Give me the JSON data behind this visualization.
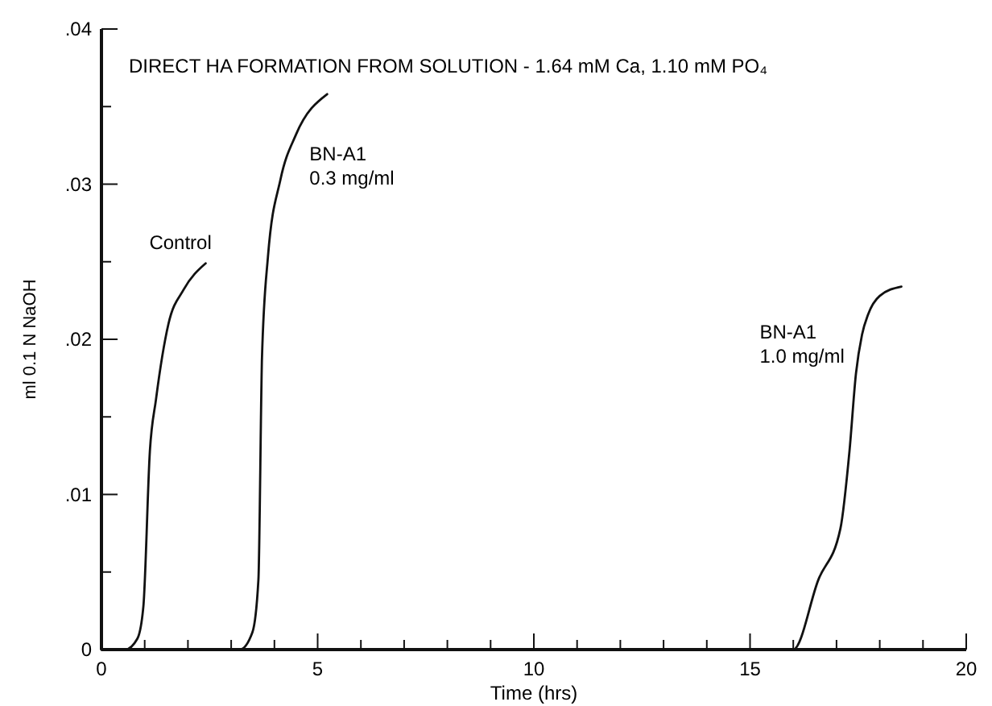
{
  "chart_data": {
    "type": "line",
    "title": "DIRECT HA FORMATION FROM SOLUTION - 1.64 mM Ca, 1.10 mM PO₄",
    "xlabel": "Time (hrs)",
    "ylabel": "ml 0.1 N NaOH",
    "series": [
      {
        "name": "Control",
        "color": "#111111",
        "x": [
          0,
          0.55,
          0.83,
          0.97,
          1.12,
          1.26,
          1.55,
          1.9,
          2.41
        ],
        "values": [
          0,
          0,
          0.0007,
          0.0028,
          0.0128,
          0.0161,
          0.021,
          0.0232,
          0.0249
        ]
      },
      {
        "name": "BN-A1\n0.3 mg/ml",
        "color": "#111111",
        "x": [
          0,
          3.2,
          3.49,
          3.63,
          3.7,
          3.71,
          3.85,
          4.14,
          4.5,
          5.22
        ],
        "values": [
          0,
          0,
          0.0011,
          0.0045,
          0.017,
          0.0186,
          0.0253,
          0.0303,
          0.0332,
          0.0358
        ]
      },
      {
        "name": "BN-A1\n1.0 mg/ml",
        "color": "#111111",
        "x": [
          0,
          16.0,
          16.58,
          17.09,
          17.3,
          17.45,
          17.59,
          17.73,
          18.0,
          18.5
        ],
        "values": [
          0,
          0,
          0.0045,
          0.0078,
          0.0128,
          0.0178,
          0.0203,
          0.0216,
          0.0228,
          0.0234
        ]
      }
    ],
    "xlim": [
      0,
      20
    ],
    "ylim": [
      0,
      0.04
    ],
    "xticks": [
      0,
      {
        "value": 1,
        "label": null
      },
      {
        "value": 2,
        "label": null
      },
      {
        "value": 3,
        "label": null
      },
      {
        "value": 4,
        "label": null
      },
      5,
      {
        "value": 6,
        "label": null
      },
      {
        "value": 7,
        "label": null
      },
      {
        "value": 8,
        "label": null
      },
      {
        "value": 9,
        "label": null
      },
      10,
      {
        "value": 11,
        "label": null
      },
      {
        "value": 12,
        "label": null
      },
      {
        "value": 13,
        "label": null
      },
      {
        "value": 14,
        "label": null
      },
      15,
      {
        "value": 16,
        "label": null
      },
      {
        "value": 17,
        "label": null
      },
      {
        "value": 18,
        "label": null
      },
      {
        "value": 19,
        "label": null
      },
      20
    ],
    "yticks": [
      0,
      {
        "value": 0.005,
        "label": null
      },
      {
        "value": 0.01,
        "label": ".01"
      },
      {
        "value": 0.015,
        "label": null
      },
      {
        "value": 0.02,
        "label": ".02"
      },
      {
        "value": 0.025,
        "label": null
      },
      {
        "value": 0.03,
        "label": ".03"
      },
      {
        "value": 0.035,
        "label": null
      },
      {
        "value": 0.04,
        "label": ".04"
      }
    ],
    "grid": false,
    "marker": "none",
    "line_style": "solid"
  }
}
